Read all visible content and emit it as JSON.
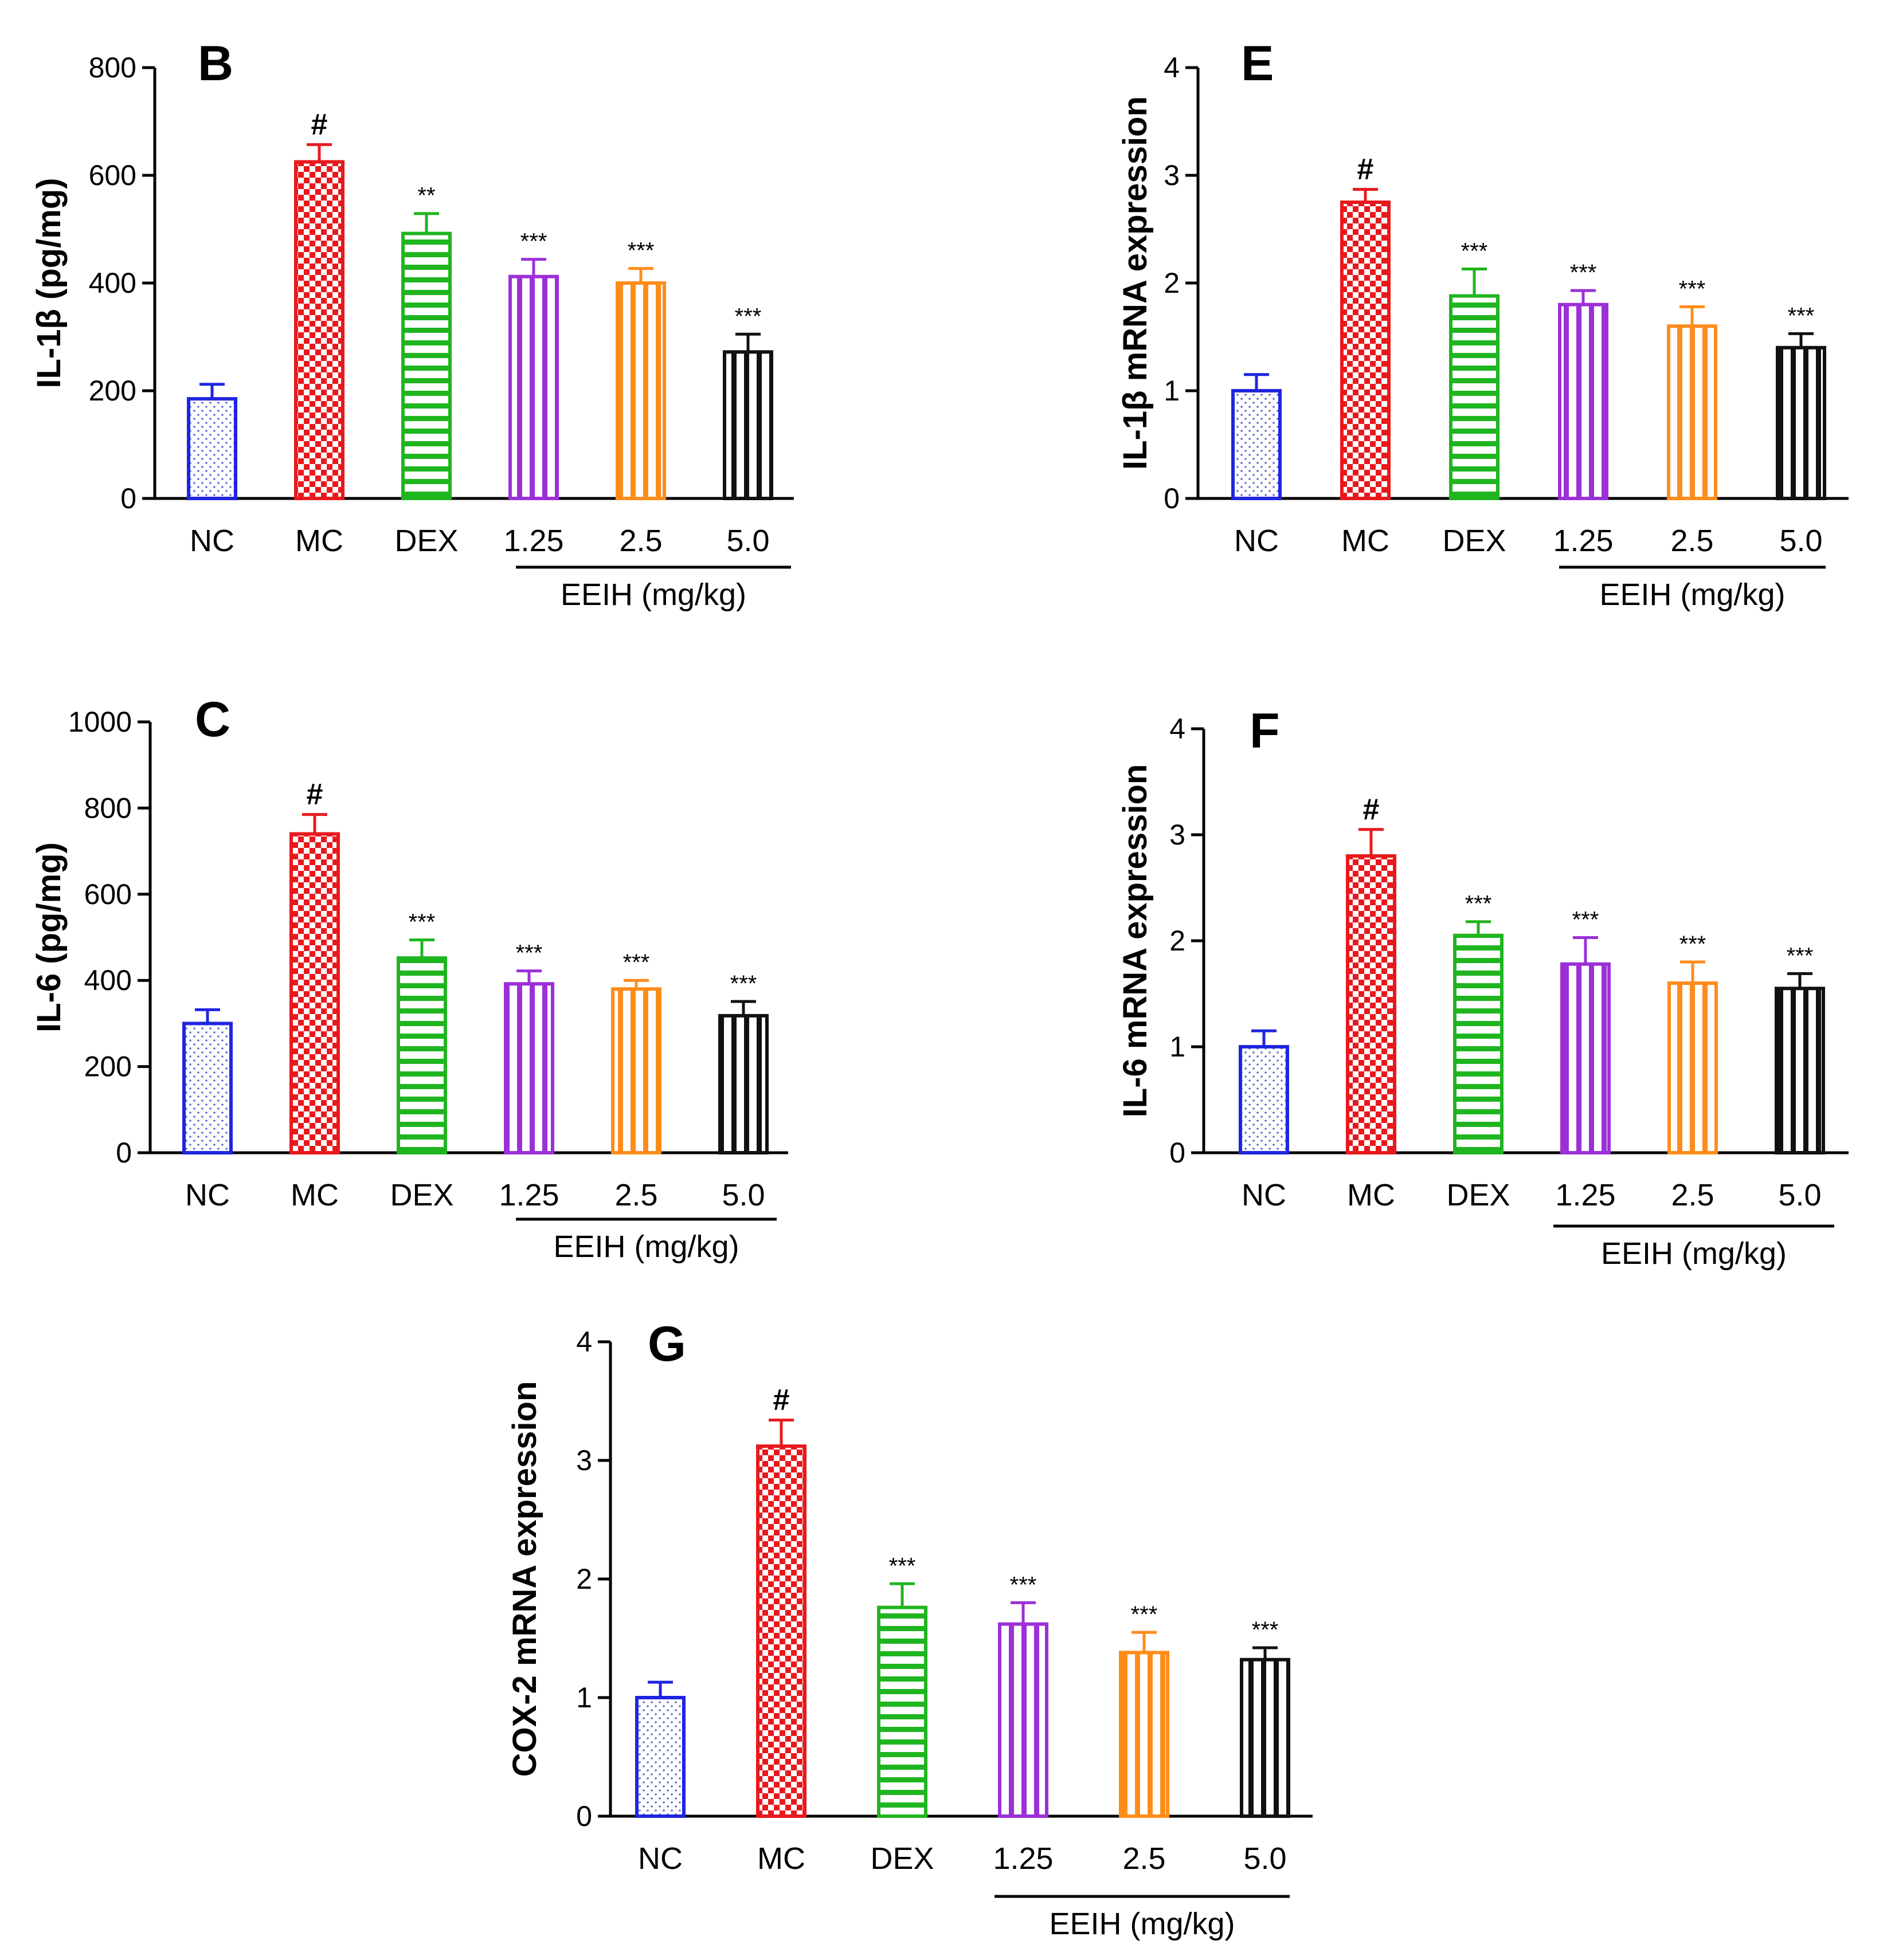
{
  "chart_data": [
    {
      "panel": "B",
      "type": "bar",
      "ylabel": "IL-1β (pg/mg)",
      "ylim": [
        0,
        800
      ],
      "yticks": [
        0,
        200,
        400,
        600,
        800
      ],
      "categories": [
        "NC",
        "MC",
        "DEX",
        "1.25",
        "2.5",
        "5.0"
      ],
      "group_label": "EEIH (mg/kg)",
      "values": [
        185,
        625,
        492,
        412,
        400,
        272
      ],
      "errors": [
        27,
        32,
        37,
        32,
        27,
        33
      ],
      "significance": [
        "",
        "#",
        "**",
        "***",
        "***",
        "***"
      ]
    },
    {
      "panel": "E",
      "type": "bar",
      "ylabel": "IL-1β mRNA expression",
      "ylim": [
        0,
        4
      ],
      "yticks": [
        0,
        1,
        2,
        3,
        4
      ],
      "categories": [
        "NC",
        "MC",
        "DEX",
        "1.25",
        "2.5",
        "5.0"
      ],
      "group_label": "EEIH (mg/kg)",
      "values": [
        1.0,
        2.75,
        1.88,
        1.8,
        1.6,
        1.4
      ],
      "errors": [
        0.15,
        0.12,
        0.25,
        0.13,
        0.18,
        0.13
      ],
      "significance": [
        "",
        "#",
        "***",
        "***",
        "***",
        "***"
      ]
    },
    {
      "panel": "C",
      "type": "bar",
      "ylabel": "IL-6 (pg/mg)",
      "ylim": [
        0,
        1000
      ],
      "yticks": [
        0,
        200,
        400,
        600,
        800,
        1000
      ],
      "categories": [
        "NC",
        "MC",
        "DEX",
        "1.25",
        "2.5",
        "5.0"
      ],
      "group_label": "EEIH (mg/kg)",
      "values": [
        300,
        740,
        452,
        392,
        380,
        318
      ],
      "errors": [
        32,
        45,
        42,
        30,
        20,
        33
      ],
      "significance": [
        "",
        "#",
        "***",
        "***",
        "***",
        "***"
      ]
    },
    {
      "panel": "F",
      "type": "bar",
      "ylabel": "IL-6 mRNA expression",
      "ylim": [
        0,
        4
      ],
      "yticks": [
        0,
        1,
        2,
        3,
        4
      ],
      "categories": [
        "NC",
        "MC",
        "DEX",
        "1.25",
        "2.5",
        "5.0"
      ],
      "group_label": "EEIH (mg/kg)",
      "values": [
        1.0,
        2.8,
        2.05,
        1.78,
        1.6,
        1.55
      ],
      "errors": [
        0.15,
        0.25,
        0.13,
        0.25,
        0.2,
        0.14
      ],
      "significance": [
        "",
        "#",
        "***",
        "***",
        "***",
        "***"
      ]
    },
    {
      "panel": "G",
      "type": "bar",
      "ylabel": "COX-2 mRNA expression",
      "ylim": [
        0,
        4
      ],
      "yticks": [
        0,
        1,
        2,
        3,
        4
      ],
      "categories": [
        "NC",
        "MC",
        "DEX",
        "1.25",
        "2.5",
        "5.0"
      ],
      "group_label": "EEIH (mg/kg)",
      "values": [
        1.0,
        3.12,
        1.76,
        1.62,
        1.38,
        1.32
      ],
      "errors": [
        0.13,
        0.22,
        0.2,
        0.18,
        0.17,
        0.1
      ],
      "significance": [
        "",
        "#",
        "***",
        "***",
        "***",
        "***"
      ]
    }
  ],
  "series_colors": [
    "#1f25e0",
    "#e8191d",
    "#1fb51f",
    "#9b30d8",
    "#ff8c1a",
    "#111111"
  ]
}
